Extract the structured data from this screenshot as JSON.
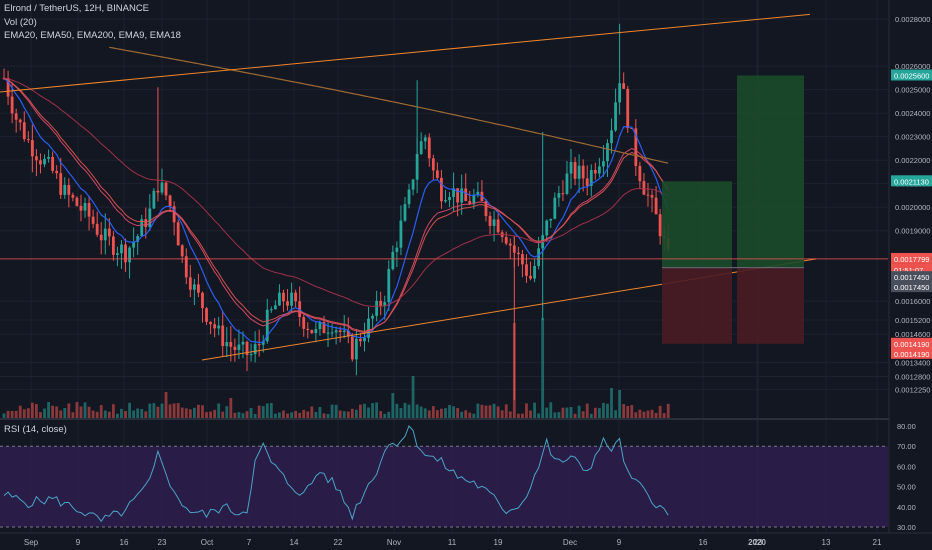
{
  "header": {
    "symbol_line": "Elrond / TetherUS, 12H, BINANCE",
    "vol_label": "Vol (20)",
    "ema_label": "EMA20, EMA50, EMA200, EMA9, EMA18"
  },
  "rsi_header": "RSI (14, close)",
  "colors": {
    "background": "#131722",
    "up": "#26a69a",
    "down": "#ef5350",
    "trendline": "#f0862b",
    "rsi_line": "#4aa3c8",
    "rsi_band": "#2e1f4e"
  },
  "chart_data": [
    {
      "type": "candlestick",
      "title": "Elrond / TetherUS, 12H, BINANCE",
      "series_names": [
        "EMA20",
        "EMA50",
        "EMA200",
        "EMA9",
        "EMA18"
      ],
      "x_ticks": [
        "Sep",
        "9",
        "16",
        "23",
        "Oct",
        "7",
        "14",
        "22",
        "Nov",
        "11",
        "19",
        "Dec",
        "9",
        "16",
        "23",
        "2020",
        "13",
        "21"
      ],
      "y_ticks": [
        "0.0028000",
        "0.0026000",
        "0.0025000",
        "0.0024000",
        "0.0023000",
        "0.0022000",
        "0.0021000",
        "0.0020000",
        "0.0019000",
        "0.0016000",
        "0.0015200",
        "0.0014600",
        "0.0013400",
        "0.0012800",
        "0.0012250"
      ],
      "ylim": [
        0.00118,
        0.00283
      ],
      "price_labels": [
        {
          "value": "0.0025600",
          "color": "#26a69a"
        },
        {
          "value": "0.0021130",
          "color": "#26a69a"
        },
        {
          "value": "0.0017799",
          "color": "#ef5350"
        },
        {
          "value": "01:51:07",
          "color": "#ef5350"
        },
        {
          "value": "0.0017450",
          "color": "#4a4f5c"
        },
        {
          "value": "0.0017450",
          "color": "#4a4f5c"
        },
        {
          "value": "0.0014190",
          "color": "#ef5350"
        },
        {
          "value": "0.0014190",
          "color": "#ef5350"
        }
      ],
      "price_path": [
        [
          0,
          0.00255
        ],
        [
          3,
          0.00238
        ],
        [
          6,
          0.00228
        ],
        [
          9,
          0.00221
        ],
        [
          12,
          0.00215
        ],
        [
          15,
          0.00206
        ],
        [
          18,
          0.00201
        ],
        [
          21,
          0.00196
        ],
        [
          24,
          0.00188
        ],
        [
          27,
          0.00184
        ],
        [
          30,
          0.00181
        ],
        [
          33,
          0.00188
        ],
        [
          36,
          0.00198
        ],
        [
          38,
          0.0021
        ],
        [
          40,
          0.00205
        ],
        [
          42,
          0.00196
        ],
        [
          44,
          0.00178
        ],
        [
          47,
          0.00165
        ],
        [
          50,
          0.00155
        ],
        [
          53,
          0.00146
        ],
        [
          56,
          0.00141
        ],
        [
          58,
          0.00139
        ],
        [
          61,
          0.00137
        ],
        [
          63,
          0.00142
        ],
        [
          65,
          0.00152
        ],
        [
          67,
          0.00158
        ],
        [
          69,
          0.00161
        ],
        [
          71,
          0.0016
        ],
        [
          73,
          0.00154
        ],
        [
          75,
          0.0015
        ],
        [
          77,
          0.00146
        ],
        [
          79,
          0.00149
        ],
        [
          81,
          0.00151
        ],
        [
          83,
          0.00147
        ],
        [
          85,
          0.00141
        ],
        [
          86,
          0.00139
        ],
        [
          88,
          0.00145
        ],
        [
          90,
          0.0015
        ],
        [
          92,
          0.00156
        ],
        [
          94,
          0.00163
        ],
        [
          96,
          0.0018
        ],
        [
          98,
          0.00192
        ],
        [
          100,
          0.00204
        ],
        [
          102,
          0.00224
        ],
        [
          104,
          0.0023
        ],
        [
          106,
          0.00215
        ],
        [
          108,
          0.00207
        ],
        [
          110,
          0.00208
        ],
        [
          112,
          0.00205
        ],
        [
          114,
          0.00202
        ],
        [
          116,
          0.00204
        ],
        [
          118,
          0.00201
        ],
        [
          120,
          0.00196
        ],
        [
          122,
          0.00193
        ],
        [
          124,
          0.00188
        ],
        [
          126,
          0.00181
        ],
        [
          128,
          0.00176
        ],
        [
          130,
          0.0017
        ],
        [
          132,
          0.0018
        ],
        [
          134,
          0.00192
        ],
        [
          136,
          0.00202
        ],
        [
          138,
          0.0021
        ],
        [
          140,
          0.00215
        ],
        [
          142,
          0.00214
        ],
        [
          144,
          0.00212
        ],
        [
          146,
          0.00218
        ],
        [
          148,
          0.00224
        ],
        [
          150,
          0.00235
        ],
        [
          152,
          0.00256
        ],
        [
          154,
          0.00238
        ],
        [
          156,
          0.0022
        ],
        [
          158,
          0.00209
        ],
        [
          160,
          0.002
        ],
        [
          162,
          0.00191
        ],
        [
          164,
          0.00178
        ]
      ],
      "volume_spikes": [
        [
          126,
          0.95
        ],
        [
          133,
          1.0
        ],
        [
          101,
          0.42
        ],
        [
          40,
          0.26
        ],
        [
          96,
          0.25
        ],
        [
          150,
          0.3
        ],
        [
          152,
          0.28
        ],
        [
          56,
          0.2
        ]
      ]
    },
    {
      "type": "line",
      "title": "RSI (14, close)",
      "y_ticks": [
        "80.00",
        "70.00",
        "60.00",
        "50.00",
        "40.00",
        "30.00"
      ],
      "ylim": [
        27,
        83
      ],
      "band": [
        30,
        70
      ],
      "values": [
        [
          0,
          46
        ],
        [
          6,
          42
        ],
        [
          12,
          44
        ],
        [
          18,
          39
        ],
        [
          24,
          33
        ],
        [
          30,
          38
        ],
        [
          36,
          52
        ],
        [
          38,
          66
        ],
        [
          40,
          58
        ],
        [
          42,
          46
        ],
        [
          46,
          38
        ],
        [
          50,
          36
        ],
        [
          54,
          40
        ],
        [
          58,
          37
        ],
        [
          60,
          39
        ],
        [
          62,
          62
        ],
        [
          64,
          70
        ],
        [
          66,
          62
        ],
        [
          70,
          52
        ],
        [
          74,
          46
        ],
        [
          78,
          58
        ],
        [
          82,
          50
        ],
        [
          86,
          36
        ],
        [
          88,
          44
        ],
        [
          92,
          58
        ],
        [
          94,
          68
        ],
        [
          96,
          72
        ],
        [
          98,
          73
        ],
        [
          100,
          80
        ],
        [
          102,
          72
        ],
        [
          104,
          66
        ],
        [
          108,
          62
        ],
        [
          112,
          55
        ],
        [
          116,
          52
        ],
        [
          120,
          46
        ],
        [
          124,
          38
        ],
        [
          128,
          42
        ],
        [
          132,
          60
        ],
        [
          134,
          72
        ],
        [
          136,
          62
        ],
        [
          140,
          64
        ],
        [
          144,
          58
        ],
        [
          148,
          72
        ],
        [
          150,
          69
        ],
        [
          152,
          72
        ],
        [
          154,
          56
        ],
        [
          158,
          48
        ],
        [
          162,
          40
        ],
        [
          164,
          35
        ]
      ]
    }
  ]
}
